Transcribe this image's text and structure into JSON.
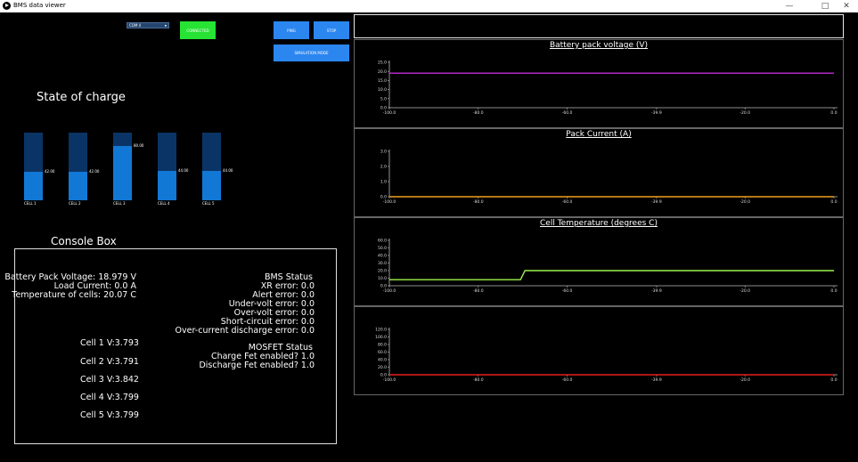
{
  "window": {
    "title": "BMS data viewer",
    "controls": [
      "—",
      "□",
      "✕"
    ]
  },
  "toolbar": {
    "com_port": "COM 4",
    "connected_label": "CONNECTED",
    "ping_label": "PING",
    "stop_label": "STOP",
    "simulation_label": "SIMULATION MODE"
  },
  "soc": {
    "title": "State of charge",
    "cells": [
      {
        "name": "CELL 1",
        "value": "42.00",
        "fraction": 0.42
      },
      {
        "name": "CELL 2",
        "value": "42.00",
        "fraction": 0.42
      },
      {
        "name": "CELL 3",
        "value": "80.00",
        "fraction": 0.8
      },
      {
        "name": "CELL 4",
        "value": "44.00",
        "fraction": 0.44
      },
      {
        "name": "CELL 5",
        "value": "44.00",
        "fraction": 0.44
      }
    ]
  },
  "console": {
    "title": "Console Box",
    "pack_voltage": "Battery Pack Voltage: 18.979 V",
    "load_current": "Load Current: 0.0 A",
    "temperature": "Temperature of cells: 20.07 C",
    "cells": [
      "Cell 1 V:3.793",
      "Cell 2 V:3.791",
      "Cell 3 V:3.842",
      "Cell 4 V:3.799",
      "Cell 5 V:3.799"
    ],
    "bms_status_title": "BMS Status",
    "bms_status": [
      "XR error: 0.0",
      "Alert error: 0.0",
      "Under-volt error: 0.0",
      "Over-volt error: 0.0",
      "Short-circuit error: 0.0",
      "Over-current discharge error: 0.0"
    ],
    "mosfet_title": "MOSFET Status",
    "mosfet": [
      "Charge Fet enabled? 1.0",
      "Discharge Fet enabled?  1.0"
    ]
  },
  "chart_data": [
    {
      "type": "line",
      "title": "Battery pack voltage (V)",
      "x_ticks": [
        "-100.0",
        "-80.0",
        "-60.0",
        "-39.9",
        "-20.0",
        "0.0"
      ],
      "y_ticks": [
        "0.0",
        "5.0",
        "10.0",
        "15.0",
        "20.0",
        "25.0"
      ],
      "ylim": [
        0,
        25
      ],
      "xlim": [
        -100,
        0
      ],
      "series": [
        {
          "color": "#c02bd6",
          "x": [
            -100,
            0
          ],
          "y": [
            19,
            19
          ]
        }
      ]
    },
    {
      "type": "line",
      "title": "Pack Current (A)",
      "x_ticks": [
        "-100.0",
        "-80.0",
        "-60.0",
        "-39.9",
        "-20.0",
        "0.0"
      ],
      "y_ticks": [
        "0.0",
        "1.0",
        "2.0",
        "3.0"
      ],
      "ylim": [
        0,
        3
      ],
      "xlim": [
        -100,
        0
      ],
      "series": [
        {
          "color": "#f0a020",
          "x": [
            -100,
            0
          ],
          "y": [
            0,
            0
          ]
        }
      ]
    },
    {
      "type": "line",
      "title": "Cell Temperature (degrees C)",
      "x_ticks": [
        "-100.0",
        "-80.0",
        "-60.0",
        "-39.9",
        "-20.0",
        "0.0"
      ],
      "y_ticks": [
        "0.0",
        "10.0",
        "20.0",
        "30.0",
        "40.0",
        "50.0",
        "60.0"
      ],
      "ylim": [
        0,
        60
      ],
      "xlim": [
        -100,
        0
      ],
      "series": [
        {
          "color": "#9ef24a",
          "x": [
            -100,
            -70.5,
            -69.5,
            0
          ],
          "y": [
            8,
            8,
            20,
            20
          ]
        }
      ]
    },
    {
      "type": "line",
      "title": "",
      "x_ticks": [
        "-100.0",
        "-80.0",
        "-60.0",
        "-39.9",
        "-20.0",
        "0.0"
      ],
      "y_ticks": [
        "0.0",
        "20.0",
        "40.0",
        "60.0",
        "80.0",
        "100.0",
        "120.0"
      ],
      "ylim": [
        0,
        120
      ],
      "xlim": [
        -100,
        0
      ],
      "series": [
        {
          "color": "#e8201a",
          "x": [
            -100,
            0
          ],
          "y": [
            0,
            0
          ]
        }
      ]
    }
  ]
}
